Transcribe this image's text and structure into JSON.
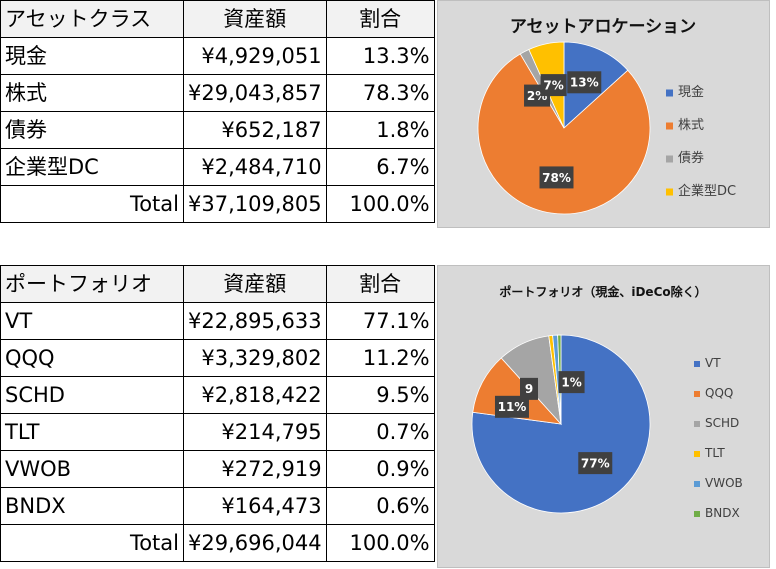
{
  "allocation_table": {
    "headers": [
      "アセットクラス",
      "資産額",
      "割合"
    ],
    "rows": [
      {
        "name": "現金",
        "amount": "¥4,929,051",
        "ratio": "13.3%"
      },
      {
        "name": "株式",
        "amount": "¥29,043,857",
        "ratio": "78.3%"
      },
      {
        "name": "債券",
        "amount": "¥652,187",
        "ratio": "1.8%"
      },
      {
        "name": "企業型DC",
        "amount": "¥2,484,710",
        "ratio": "6.7%"
      }
    ],
    "total": {
      "label": "Total",
      "amount": "¥37,109,805",
      "ratio": "100.0%"
    }
  },
  "portfolio_table": {
    "headers": [
      "ポートフォリオ",
      "資産額",
      "割合"
    ],
    "rows": [
      {
        "name": "VT",
        "amount": "¥22,895,633",
        "ratio": "77.1%"
      },
      {
        "name": "QQQ",
        "amount": "¥3,329,802",
        "ratio": "11.2%"
      },
      {
        "name": "SCHD",
        "amount": "¥2,818,422",
        "ratio": "9.5%"
      },
      {
        "name": "TLT",
        "amount": "¥214,795",
        "ratio": "0.7%"
      },
      {
        "name": "VWOB",
        "amount": "¥272,919",
        "ratio": "0.9%"
      },
      {
        "name": "BNDX",
        "amount": "¥164,473",
        "ratio": "0.6%"
      }
    ],
    "total": {
      "label": "Total",
      "amount": "¥29,696,044",
      "ratio": "100.0%"
    }
  },
  "chart_data": [
    {
      "type": "pie",
      "title": "アセットアロケーション",
      "categories": [
        "現金",
        "株式",
        "債券",
        "企業型DC"
      ],
      "values": [
        13.3,
        78.3,
        1.8,
        6.7
      ],
      "data_labels": [
        "13%",
        "78%",
        "2%",
        "7%"
      ],
      "colors": [
        "#4472c4",
        "#ed7d31",
        "#a5a5a5",
        "#ffc000"
      ],
      "legend": "right"
    },
    {
      "type": "pie",
      "title": "ポートフォリオ（現金、iDeCo除く）",
      "categories": [
        "VT",
        "QQQ",
        "SCHD",
        "TLT",
        "VWOB",
        "BNDX"
      ],
      "values": [
        77.1,
        11.2,
        9.5,
        0.7,
        0.9,
        0.6
      ],
      "data_labels": [
        "77%",
        "11%",
        "9",
        "",
        "1%",
        ""
      ],
      "colors": [
        "#4472c4",
        "#ed7d31",
        "#a5a5a5",
        "#ffc000",
        "#5b9bd5",
        "#70ad47"
      ],
      "legend": "right"
    }
  ]
}
